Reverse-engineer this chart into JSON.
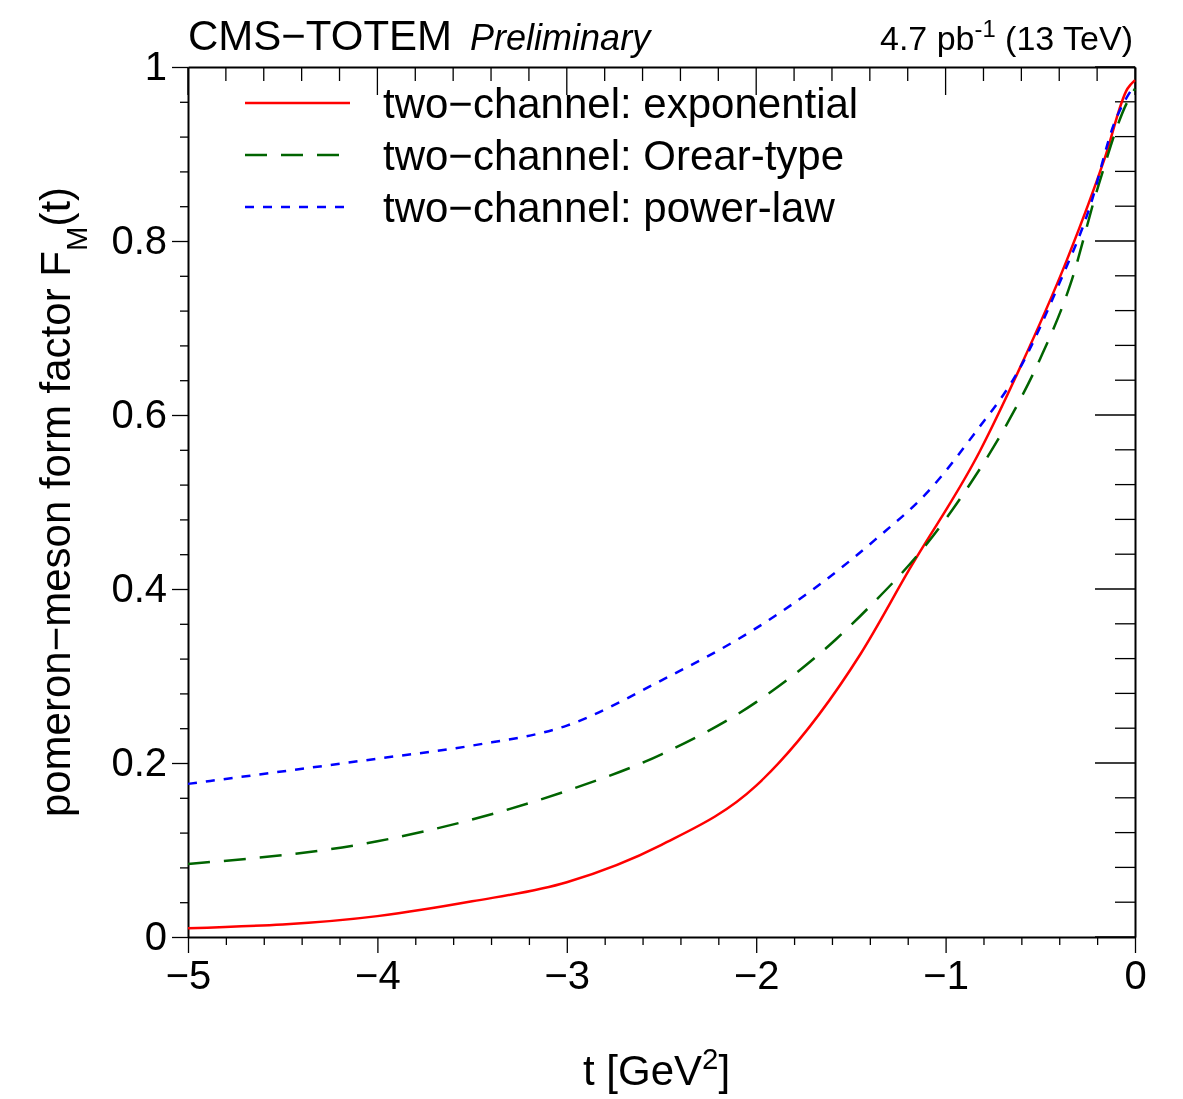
{
  "chart_data": {
    "type": "line",
    "title": "CMS−TOTEM",
    "subtitle": "Preliminary",
    "annotations": [
      "4.7 pb$^{-1}$ (13 TeV)"
    ],
    "xlabel": "t [GeV$^{2}$]",
    "ylabel": "pomeron−meson form factor F$_{M}$(t)",
    "xlim": [
      -5,
      0
    ],
    "ylim": [
      0,
      1
    ],
    "xticks": [
      {
        "value": -5,
        "label": "−5"
      },
      {
        "value": -4.8,
        "label": null
      },
      {
        "value": -4.6,
        "label": null
      },
      {
        "value": -4.4,
        "label": null
      },
      {
        "value": -4.2,
        "label": null
      },
      {
        "value": -4,
        "label": "−4"
      },
      {
        "value": -3.8,
        "label": null
      },
      {
        "value": -3.6,
        "label": null
      },
      {
        "value": -3.4,
        "label": null
      },
      {
        "value": -3.2,
        "label": null
      },
      {
        "value": -3,
        "label": "−3"
      },
      {
        "value": -2.8,
        "label": null
      },
      {
        "value": -2.6,
        "label": null
      },
      {
        "value": -2.4,
        "label": null
      },
      {
        "value": -2.2,
        "label": null
      },
      {
        "value": -2,
        "label": "−2"
      },
      {
        "value": -1.8,
        "label": null
      },
      {
        "value": -1.6,
        "label": null
      },
      {
        "value": -1.4,
        "label": null
      },
      {
        "value": -1.2,
        "label": null
      },
      {
        "value": -1,
        "label": "−1"
      },
      {
        "value": -0.8,
        "label": null
      },
      {
        "value": -0.6,
        "label": null
      },
      {
        "value": -0.4,
        "label": null
      },
      {
        "value": -0.2,
        "label": null
      },
      0
    ],
    "yticks": [
      0,
      {
        "value": 0.04,
        "label": null
      },
      {
        "value": 0.08,
        "label": null
      },
      {
        "value": 0.12,
        "label": null
      },
      {
        "value": 0.16,
        "label": null
      },
      0.2,
      {
        "value": 0.24,
        "label": null
      },
      {
        "value": 0.28,
        "label": null
      },
      {
        "value": 0.32,
        "label": null
      },
      {
        "value": 0.36,
        "label": null
      },
      0.4,
      {
        "value": 0.44,
        "label": null
      },
      {
        "value": 0.48,
        "label": null
      },
      {
        "value": 0.52,
        "label": null
      },
      {
        "value": 0.56,
        "label": null
      },
      0.6,
      {
        "value": 0.64,
        "label": null
      },
      {
        "value": 0.68,
        "label": null
      },
      {
        "value": 0.72,
        "label": null
      },
      {
        "value": 0.76,
        "label": null
      },
      0.8,
      {
        "value": 0.84,
        "label": null
      },
      {
        "value": 0.88,
        "label": null
      },
      {
        "value": 0.92,
        "label": null
      },
      {
        "value": 0.96,
        "label": null
      },
      1
    ],
    "grid": false,
    "legend": "top",
    "marker": "none",
    "series": [
      {
        "name": "two−channel: exponential",
        "color": "#ff0000",
        "line_style": "solid",
        "x": [
          -5,
          -4,
          -3.5,
          -3,
          -2.5,
          -2,
          -1.45,
          -1.19,
          -0.82,
          -0.61,
          -0.36,
          -0.16,
          -0.04,
          0
        ],
        "values": [
          0.01,
          0.024,
          0.041,
          0.063,
          0.106,
          0.174,
          0.325,
          0.423,
          0.558,
          0.653,
          0.778,
          0.895,
          0.975,
          0.985
        ]
      },
      {
        "name": "two−channel: Orear-type",
        "color": "#006400",
        "line_style": "dashed",
        "x": [
          -5,
          -4,
          -3.5,
          -3,
          -2.5,
          -2,
          -1.58,
          -1.4,
          -1.11,
          -0.87,
          -0.66,
          -0.5,
          -0.34,
          -0.19,
          -0.04,
          0
        ],
        "values": [
          0.084,
          0.11,
          0.135,
          0.168,
          0.21,
          0.27,
          0.342,
          0.38,
          0.449,
          0.521,
          0.596,
          0.665,
          0.751,
          0.866,
          0.96,
          0.975
        ]
      },
      {
        "name": "two−channel: power-law",
        "color": "#0000ff",
        "line_style": "dotted",
        "x": [
          -5,
          -4,
          -3.5,
          -3,
          -2.5,
          -2,
          -1.66,
          -1.37,
          -1.08,
          -0.85,
          -0.61,
          -0.4,
          -0.24,
          -0.11,
          0
        ],
        "values": [
          0.176,
          0.205,
          0.22,
          0.243,
          0.295,
          0.355,
          0.406,
          0.457,
          0.515,
          0.578,
          0.653,
          0.751,
          0.838,
          0.935,
          0.98
        ]
      }
    ]
  }
}
